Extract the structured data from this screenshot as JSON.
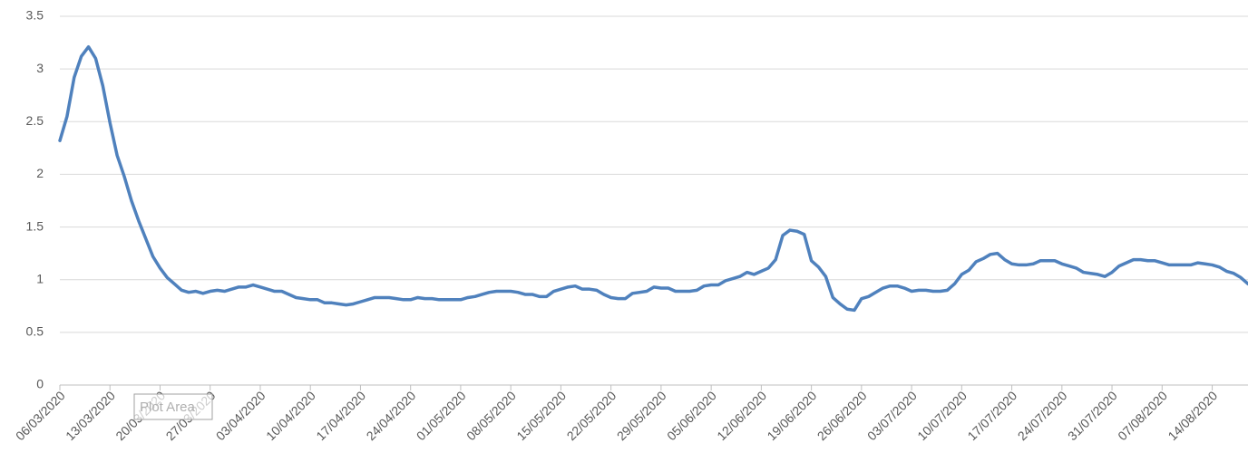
{
  "chart_data": {
    "type": "line",
    "tooltip": "Plot Area",
    "categories": [
      "06/03/2020",
      null,
      null,
      null,
      null,
      null,
      null,
      "13/03/2020",
      null,
      null,
      null,
      null,
      null,
      null,
      "20/03/2020",
      null,
      null,
      null,
      null,
      null,
      null,
      "27/03/2020",
      null,
      null,
      null,
      null,
      null,
      null,
      "03/04/2020",
      null,
      null,
      null,
      null,
      null,
      null,
      "10/04/2020",
      null,
      null,
      null,
      null,
      null,
      null,
      "17/04/2020",
      null,
      null,
      null,
      null,
      null,
      null,
      "24/04/2020",
      null,
      null,
      null,
      null,
      null,
      null,
      "01/05/2020",
      null,
      null,
      null,
      null,
      null,
      null,
      "08/05/2020",
      null,
      null,
      null,
      null,
      null,
      null,
      "15/05/2020",
      null,
      null,
      null,
      null,
      null,
      null,
      "22/05/2020",
      null,
      null,
      null,
      null,
      null,
      null,
      "29/05/2020",
      null,
      null,
      null,
      null,
      null,
      null,
      "05/06/2020",
      null,
      null,
      null,
      null,
      null,
      null,
      "12/06/2020",
      null,
      null,
      null,
      null,
      null,
      null,
      "19/06/2020",
      null,
      null,
      null,
      null,
      null,
      null,
      "26/06/2020",
      null,
      null,
      null,
      null,
      null,
      null,
      "03/07/2020",
      null,
      null,
      null,
      null,
      null,
      null,
      "10/07/2020",
      null,
      null,
      null,
      null,
      null,
      null,
      "17/07/2020",
      null,
      null,
      null,
      null,
      null,
      null,
      "24/07/2020",
      null,
      null,
      null,
      null,
      null,
      null,
      "31/07/2020",
      null,
      null,
      null,
      null,
      null,
      null,
      "07/08/2020",
      null,
      null,
      null,
      null,
      null,
      null,
      "14/08/2020",
      null,
      null,
      null,
      null,
      null
    ],
    "values": [
      2.32,
      2.55,
      2.92,
      3.12,
      3.21,
      3.1,
      2.84,
      2.49,
      2.18,
      1.98,
      1.75,
      1.56,
      1.39,
      1.22,
      1.11,
      1.02,
      0.96,
      0.9,
      0.88,
      0.89,
      0.87,
      0.89,
      0.9,
      0.89,
      0.91,
      0.93,
      0.93,
      0.95,
      0.93,
      0.91,
      0.89,
      0.89,
      0.86,
      0.83,
      0.82,
      0.81,
      0.81,
      0.78,
      0.78,
      0.77,
      0.76,
      0.77,
      0.79,
      0.81,
      0.83,
      0.83,
      0.83,
      0.82,
      0.81,
      0.81,
      0.83,
      0.82,
      0.82,
      0.81,
      0.81,
      0.81,
      0.81,
      0.83,
      0.84,
      0.86,
      0.88,
      0.89,
      0.89,
      0.89,
      0.88,
      0.86,
      0.86,
      0.84,
      0.84,
      0.89,
      0.91,
      0.93,
      0.94,
      0.91,
      0.91,
      0.9,
      0.86,
      0.83,
      0.82,
      0.82,
      0.87,
      0.88,
      0.89,
      0.93,
      0.92,
      0.92,
      0.89,
      0.89,
      0.89,
      0.9,
      0.94,
      0.95,
      0.95,
      0.99,
      1.01,
      1.03,
      1.07,
      1.05,
      1.08,
      1.11,
      1.19,
      1.42,
      1.47,
      1.46,
      1.43,
      1.18,
      1.12,
      1.03,
      0.83,
      0.77,
      0.72,
      0.71,
      0.82,
      0.84,
      0.88,
      0.92,
      0.94,
      0.94,
      0.92,
      0.89,
      0.9,
      0.9,
      0.89,
      0.89,
      0.9,
      0.96,
      1.05,
      1.09,
      1.17,
      1.2,
      1.24,
      1.25,
      1.19,
      1.15,
      1.14,
      1.14,
      1.15,
      1.18,
      1.18,
      1.18,
      1.15,
      1.13,
      1.11,
      1.07,
      1.06,
      1.05,
      1.03,
      1.07,
      1.13,
      1.16,
      1.19,
      1.19,
      1.18,
      1.18,
      1.16,
      1.14,
      1.14,
      1.14,
      1.14,
      1.16,
      1.15,
      1.14,
      1.12,
      1.08,
      1.06,
      1.02,
      0.96
    ],
    "color": "#4f81bd",
    "ylim": [
      0,
      3.5
    ],
    "yticks": [
      0,
      0.5,
      1,
      1.5,
      2,
      2.5,
      3,
      3.5
    ],
    "grid": true
  }
}
